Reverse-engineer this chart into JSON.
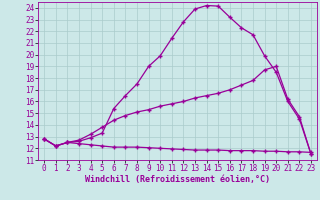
{
  "xlabel": "Windchill (Refroidissement éolien,°C)",
  "background_color": "#cce8e8",
  "grid_color": "#aacccc",
  "line_color": "#990099",
  "xlim": [
    -0.5,
    23.5
  ],
  "ylim": [
    11,
    24.5
  ],
  "yticks": [
    11,
    12,
    13,
    14,
    15,
    16,
    17,
    18,
    19,
    20,
    21,
    22,
    23,
    24
  ],
  "xticks": [
    0,
    1,
    2,
    3,
    4,
    5,
    6,
    7,
    8,
    9,
    10,
    11,
    12,
    13,
    14,
    15,
    16,
    17,
    18,
    19,
    20,
    21,
    22,
    23
  ],
  "line1_x": [
    0,
    1,
    2,
    3,
    4,
    5,
    6,
    7,
    8,
    9,
    10,
    11,
    12,
    13,
    14,
    15,
    16,
    17,
    18,
    19,
    20,
    21,
    22,
    23
  ],
  "line1_y": [
    12.8,
    12.2,
    12.5,
    12.4,
    12.3,
    12.2,
    12.1,
    12.1,
    12.1,
    12.05,
    12.0,
    11.95,
    11.9,
    11.85,
    11.85,
    11.85,
    11.8,
    11.8,
    11.8,
    11.75,
    11.75,
    11.7,
    11.7,
    11.65
  ],
  "line2_x": [
    0,
    1,
    2,
    3,
    4,
    5,
    6,
    7,
    8,
    9,
    10,
    11,
    12,
    13,
    14,
    15,
    16,
    17,
    18,
    19,
    20,
    21,
    22,
    23
  ],
  "line2_y": [
    12.8,
    12.2,
    12.5,
    12.7,
    13.2,
    13.8,
    14.4,
    14.8,
    15.1,
    15.3,
    15.6,
    15.8,
    16.0,
    16.3,
    16.5,
    16.7,
    17.0,
    17.4,
    17.8,
    18.7,
    19.0,
    16.2,
    14.7,
    11.5
  ],
  "line3_x": [
    0,
    1,
    2,
    3,
    4,
    5,
    6,
    7,
    8,
    9,
    10,
    11,
    12,
    13,
    14,
    15,
    16,
    17,
    18,
    19,
    20,
    21,
    22,
    23
  ],
  "line3_y": [
    12.8,
    12.2,
    12.5,
    12.6,
    12.9,
    13.3,
    15.4,
    16.5,
    17.5,
    19.0,
    19.9,
    21.4,
    22.8,
    23.9,
    24.2,
    24.15,
    23.2,
    22.3,
    21.7,
    19.9,
    18.5,
    16.0,
    14.5,
    11.5
  ],
  "tick_fontsize": 5.5,
  "xlabel_fontsize": 6.0,
  "markersize": 3,
  "linewidth": 0.9
}
